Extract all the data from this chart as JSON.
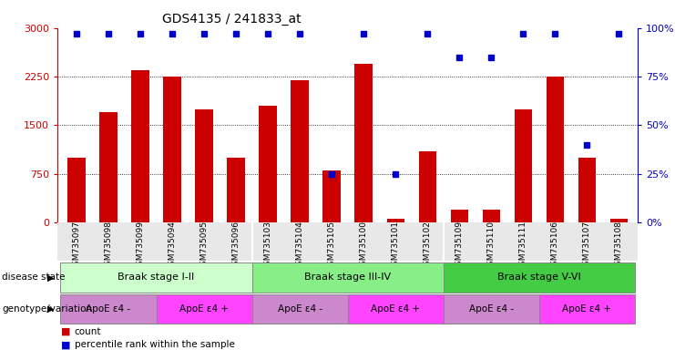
{
  "title": "GDS4135 / 241833_at",
  "samples": [
    "GSM735097",
    "GSM735098",
    "GSM735099",
    "GSM735094",
    "GSM735095",
    "GSM735096",
    "GSM735103",
    "GSM735104",
    "GSM735105",
    "GSM735100",
    "GSM735101",
    "GSM735102",
    "GSM735109",
    "GSM735110",
    "GSM735111",
    "GSM735106",
    "GSM735107",
    "GSM735108"
  ],
  "counts": [
    1000,
    1700,
    2350,
    2250,
    1750,
    1000,
    1800,
    2200,
    800,
    2450,
    50,
    1100,
    200,
    200,
    1750,
    2250,
    1000,
    50
  ],
  "percentiles": [
    97,
    97,
    97,
    97,
    97,
    97,
    97,
    97,
    25,
    97,
    25,
    97,
    85,
    85,
    97,
    97,
    40,
    97
  ],
  "ylim_left": [
    0,
    3000
  ],
  "ylim_right": [
    0,
    100
  ],
  "yticks_left": [
    0,
    750,
    1500,
    2250,
    3000
  ],
  "yticks_right": [
    0,
    25,
    50,
    75,
    100
  ],
  "bar_color": "#cc0000",
  "dot_color": "#0000cc",
  "disease_stages": [
    {
      "label": "Braak stage I-II",
      "start": 0,
      "end": 6,
      "color": "#ccffcc"
    },
    {
      "label": "Braak stage III-IV",
      "start": 6,
      "end": 12,
      "color": "#88ee88"
    },
    {
      "label": "Braak stage V-VI",
      "start": 12,
      "end": 18,
      "color": "#44cc44"
    }
  ],
  "genotype_groups": [
    {
      "label": "ApoE ε4 -",
      "start": 0,
      "end": 3,
      "color": "#cc88cc"
    },
    {
      "label": "ApoE ε4 +",
      "start": 3,
      "end": 6,
      "color": "#ff44ff"
    },
    {
      "label": "ApoE ε4 -",
      "start": 6,
      "end": 9,
      "color": "#cc88cc"
    },
    {
      "label": "ApoE ε4 +",
      "start": 9,
      "end": 12,
      "color": "#ff44ff"
    },
    {
      "label": "ApoE ε4 -",
      "start": 12,
      "end": 15,
      "color": "#cc88cc"
    },
    {
      "label": "ApoE ε4 +",
      "start": 15,
      "end": 18,
      "color": "#ff44ff"
    }
  ],
  "disease_state_label": "disease state",
  "genotype_label": "genotype/variation",
  "legend_count_label": "count",
  "legend_pct_label": "percentile rank within the sample",
  "bg_color": "#ffffff",
  "xlabel_bg": "#e8e8e8"
}
